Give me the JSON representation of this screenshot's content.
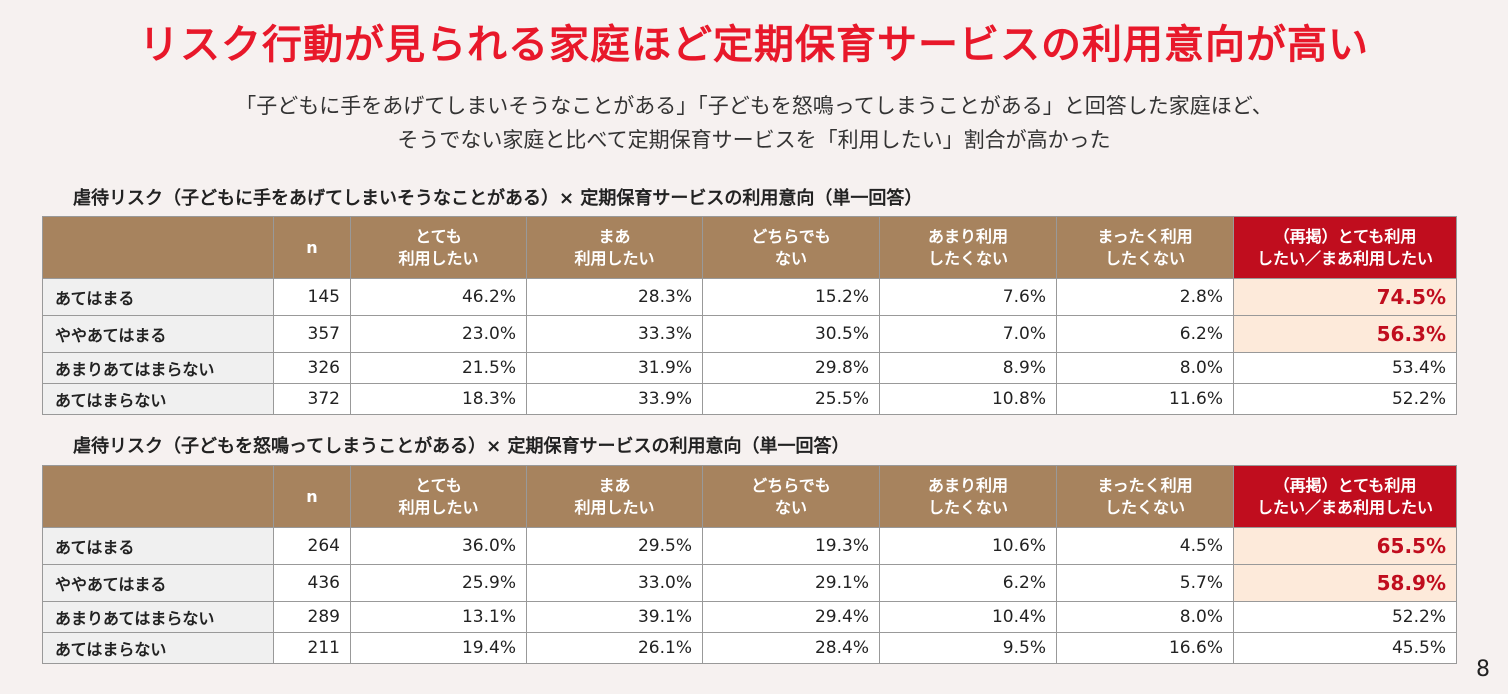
{
  "title": "リスク行動が見られる家庭ほど定期保育サービスの利用意向が高い",
  "subtitle_line1": "「子どもに手をあげてしまいそうなことがある」「子どもを怒鳴ってしまうことがある」と回答した家庭ほど、",
  "subtitle_line2": "そうでない家庭と比べて定期保育サービスを「利用したい」割合が高かった",
  "columns": {
    "n": "n",
    "c1_line1": "とても",
    "c1_line2": "利用したい",
    "c2_line1": "まあ",
    "c2_line2": "利用したい",
    "c3_line1": "どちらでも",
    "c3_line2": "ない",
    "c4_line1": "あまり利用",
    "c4_line2": "したくない",
    "c5_line1": "まったく利用",
    "c5_line2": "したくない",
    "c6_line1": "（再掲）とても利用",
    "c6_line2": "したい／まあ利用したい"
  },
  "table1": {
    "caption": "虐待リスク（子どもに手をあげてしまいそうなことがある）× 定期保育サービスの利用意向（単一回答）",
    "rows": [
      {
        "label": "あてはまる",
        "n": "145",
        "v1": "46.2%",
        "v2": "28.3%",
        "v3": "15.2%",
        "v4": "7.6%",
        "v5": "2.8%",
        "total": "74.5%",
        "emph": true
      },
      {
        "label": "ややあてはまる",
        "n": "357",
        "v1": "23.0%",
        "v2": "33.3%",
        "v3": "30.5%",
        "v4": "7.0%",
        "v5": "6.2%",
        "total": "56.3%",
        "emph": true
      },
      {
        "label": "あまりあてはまらない",
        "n": "326",
        "v1": "21.5%",
        "v2": "31.9%",
        "v3": "29.8%",
        "v4": "8.9%",
        "v5": "8.0%",
        "total": "53.4%",
        "emph": false
      },
      {
        "label": "あてはまらない",
        "n": "372",
        "v1": "18.3%",
        "v2": "33.9%",
        "v3": "25.5%",
        "v4": "10.8%",
        "v5": "11.6%",
        "total": "52.2%",
        "emph": false
      }
    ]
  },
  "table2": {
    "caption": "虐待リスク（子どもを怒鳴ってしまうことがある）× 定期保育サービスの利用意向（単一回答）",
    "rows": [
      {
        "label": "あてはまる",
        "n": "264",
        "v1": "36.0%",
        "v2": "29.5%",
        "v3": "19.3%",
        "v4": "10.6%",
        "v5": "4.5%",
        "total": "65.5%",
        "emph": true
      },
      {
        "label": "ややあてはまる",
        "n": "436",
        "v1": "25.9%",
        "v2": "33.0%",
        "v3": "29.1%",
        "v4": "6.2%",
        "v5": "5.7%",
        "total": "58.9%",
        "emph": true
      },
      {
        "label": "あまりあてはまらない",
        "n": "289",
        "v1": "13.1%",
        "v2": "39.1%",
        "v3": "29.4%",
        "v4": "10.4%",
        "v5": "8.0%",
        "total": "52.2%",
        "emph": false
      },
      {
        "label": "あてはまらない",
        "n": "211",
        "v1": "19.4%",
        "v2": "26.1%",
        "v3": "28.4%",
        "v4": "9.5%",
        "v5": "16.6%",
        "total": "45.5%",
        "emph": false
      }
    ]
  },
  "page_number": "8",
  "colors": {
    "title_red": "#e8182a",
    "header_brown": "#a7835e",
    "header_highlight_red": "#c00d1e",
    "highlight_cell_bg": "#fdeada"
  }
}
